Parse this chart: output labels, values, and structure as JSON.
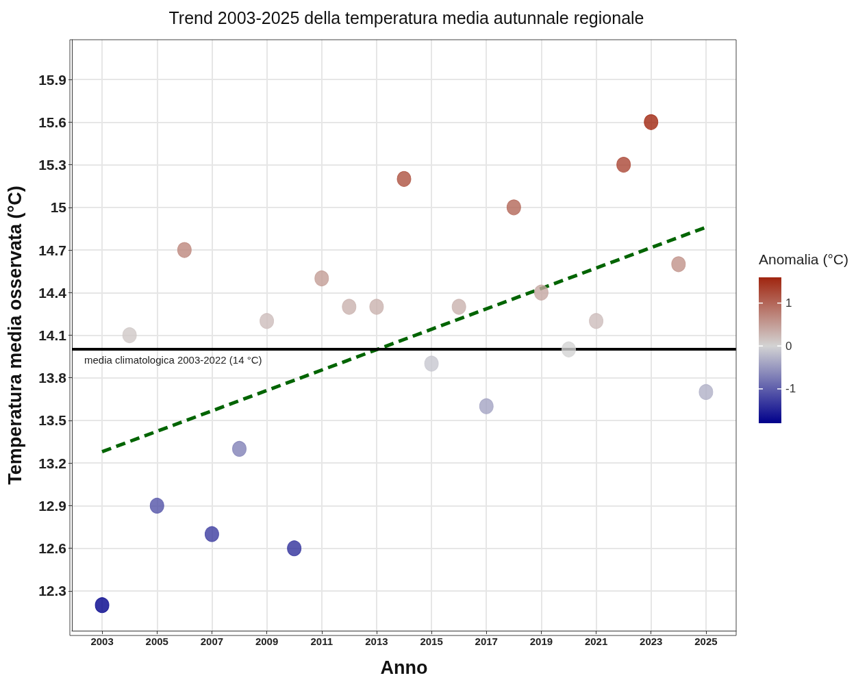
{
  "chart_data": {
    "type": "scatter",
    "title": "Trend 2003-2025 della temperatura media autunnale regionale",
    "xlabel": "Anno",
    "ylabel": "Temperatura media osservata (°C)",
    "clabel": "Anomalia (°C)",
    "x": [
      2003,
      2004,
      2005,
      2006,
      2007,
      2008,
      2009,
      2010,
      2011,
      2012,
      2013,
      2014,
      2015,
      2016,
      2017,
      2018,
      2019,
      2020,
      2021,
      2022,
      2023,
      2024,
      2025
    ],
    "series": [
      {
        "marker": "circle",
        "colors": [
          "#00008b",
          "#d0c8c7",
          "#5252a7",
          "#bd877d",
          "#3b3b9f",
          "#8181b7",
          "#cdbdbb",
          "#2f2f9b",
          "#c39d96",
          "#c9b2ae",
          "#c9b2ae",
          "#ad5140",
          "#c7c7cf",
          "#c9b2ae",
          "#a4a4c3",
          "#b36658",
          "#c6a8a2",
          "#d3d3d3",
          "#cdbdbb",
          "#aa4634",
          "#a0250f",
          "#c09289",
          "#b0b0c7"
        ],
        "values": [
          12.2,
          14.1,
          12.9,
          14.7,
          12.7,
          13.3,
          14.2,
          12.6,
          14.5,
          14.3,
          14.3,
          15.2,
          13.9,
          14.3,
          13.6,
          15.0,
          14.4,
          14.0,
          14.2,
          15.3,
          15.6,
          14.6,
          13.7
        ],
        "cvalues": [
          -1.8,
          0.1,
          -1.1,
          0.7,
          -1.3,
          -0.7,
          0.2,
          -1.4,
          0.5,
          0.3,
          0.3,
          1.2,
          -0.1,
          0.3,
          -0.4,
          1.0,
          0.4,
          0.0,
          0.2,
          1.3,
          1.6,
          0.6,
          -0.3
        ]
      },
      {
        "type": "line",
        "x": [
          2003,
          2025
        ],
        "values": [
          13.28,
          14.86
        ],
        "color": "#006400",
        "line_style": "dashed"
      }
    ],
    "ref_lines": [
      {
        "axis": "y",
        "value": 14,
        "label": "media climatologica 2003-2022 (14 °C)",
        "color": "#000000"
      }
    ],
    "xlim": [
      2001.9,
      2026.1
    ],
    "xticks": [
      2003,
      2005,
      2007,
      2009,
      2011,
      2013,
      2015,
      2017,
      2019,
      2021,
      2023,
      2025
    ],
    "ylim": [
      12.02,
      16.18
    ],
    "yticks": [
      12.3,
      12.6,
      12.9,
      13.2,
      13.5,
      13.8,
      14.1,
      14.4,
      14.7,
      15.0,
      15.3,
      15.6,
      15.9
    ],
    "clim": [
      -1.8,
      1.6
    ],
    "cticks": [
      -1,
      0,
      1
    ],
    "grid": true
  }
}
